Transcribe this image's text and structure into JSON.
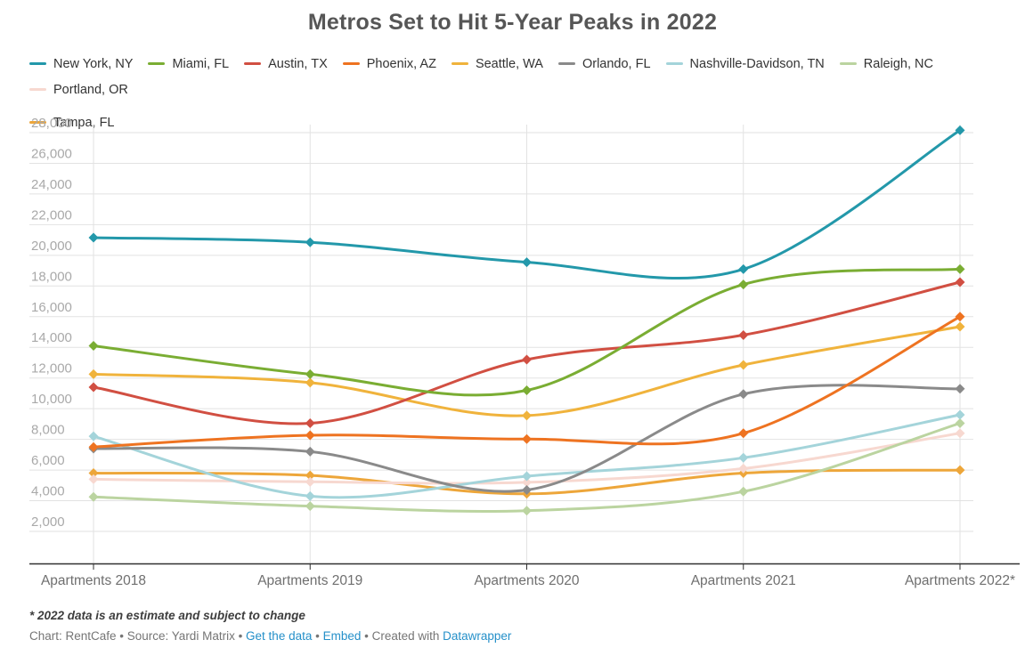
{
  "title": "Metros Set to Hit 5-Year Peaks in 2022",
  "legend": {
    "items": [
      {
        "label": "New York, NY",
        "color": "#2398aa"
      },
      {
        "label": "Miami, FL",
        "color": "#7aad33"
      },
      {
        "label": "Austin, TX",
        "color": "#d14f42"
      },
      {
        "label": "Phoenix, AZ",
        "color": "#ee7321"
      },
      {
        "label": "Seattle, WA",
        "color": "#f0b33c"
      },
      {
        "label": "Orlando, FL",
        "color": "#8a8a8a"
      },
      {
        "label": "Nashville-Davidson, TN",
        "color": "#a4d4da"
      },
      {
        "label": "Raleigh, NC",
        "color": "#bbd4a0"
      },
      {
        "label": "Portland, OR",
        "color": "#f7d8d0"
      },
      {
        "label": "Tampa, FL",
        "color": "#eda63a"
      }
    ]
  },
  "chart_data": {
    "type": "line",
    "title": "Metros Set to Hit 5-Year Peaks in 2022",
    "categories": [
      "Apartments 2018",
      "Apartments 2019",
      "Apartments 2020",
      "Apartments 2021",
      "Apartments 2022*"
    ],
    "series": [
      {
        "name": "New York, NY",
        "color": "#2398aa",
        "values": [
          21150,
          20850,
          19550,
          19100,
          28150
        ]
      },
      {
        "name": "Miami, FL",
        "color": "#7aad33",
        "values": [
          14100,
          12250,
          11200,
          18100,
          19100
        ]
      },
      {
        "name": "Austin, TX",
        "color": "#d14f42",
        "values": [
          11400,
          9050,
          13200,
          14800,
          18250
        ]
      },
      {
        "name": "Phoenix, AZ",
        "color": "#ee7321",
        "values": [
          7500,
          8270,
          8020,
          8400,
          16000
        ]
      },
      {
        "name": "Seattle, WA",
        "color": "#f0b33c",
        "values": [
          12250,
          11700,
          9550,
          12850,
          15350
        ]
      },
      {
        "name": "Orlando, FL",
        "color": "#8a8a8a",
        "values": [
          7400,
          7200,
          4700,
          10950,
          11300
        ]
      },
      {
        "name": "Nashville-Davidson, TN",
        "color": "#a4d4da",
        "values": [
          8200,
          4300,
          5600,
          6800,
          9600
        ]
      },
      {
        "name": "Raleigh, NC",
        "color": "#bbd4a0",
        "values": [
          4250,
          3650,
          3350,
          4600,
          9050
        ]
      },
      {
        "name": "Portland, OR",
        "color": "#f7d8d0",
        "values": [
          5400,
          5230,
          5200,
          6100,
          8400
        ]
      },
      {
        "name": "Tampa, FL",
        "color": "#eda63a",
        "values": [
          5800,
          5650,
          4450,
          5800,
          6000
        ]
      }
    ],
    "ylim": [
      2000,
      28000
    ],
    "y_ticks": [
      2000,
      4000,
      6000,
      8000,
      10000,
      12000,
      14000,
      16000,
      18000,
      20000,
      22000,
      24000,
      26000,
      28000
    ],
    "y_tick_labels": [
      "2,000",
      "4,000",
      "6,000",
      "8,000",
      "10,000",
      "12,000",
      "14,000",
      "16,000",
      "18,000",
      "20,000",
      "22,000",
      "24,000",
      "26,000",
      "28,000"
    ],
    "grid": true,
    "legend_position": "top",
    "marker": "diamond"
  },
  "footer": {
    "footnote": "* 2022 data is an estimate and subject to change",
    "credit_parts": [
      {
        "text": "Chart: RentCafe • Source: Yardi Matrix • ",
        "link": false
      },
      {
        "text": "Get the data",
        "link": true,
        "name": "get-the-data-link"
      },
      {
        "text": " • ",
        "link": false
      },
      {
        "text": "Embed",
        "link": true,
        "name": "embed-link"
      },
      {
        "text": " • Created with ",
        "link": false
      },
      {
        "text": "Datawrapper",
        "link": true,
        "name": "datawrapper-link"
      }
    ]
  },
  "colors": {
    "title": "#565656",
    "y_tick_label": "#a9a9a9",
    "x_tick_label": "#6f6f6f",
    "gridline": "#e2e2e2",
    "axis_line": "#303030",
    "link": "#2590c9"
  }
}
